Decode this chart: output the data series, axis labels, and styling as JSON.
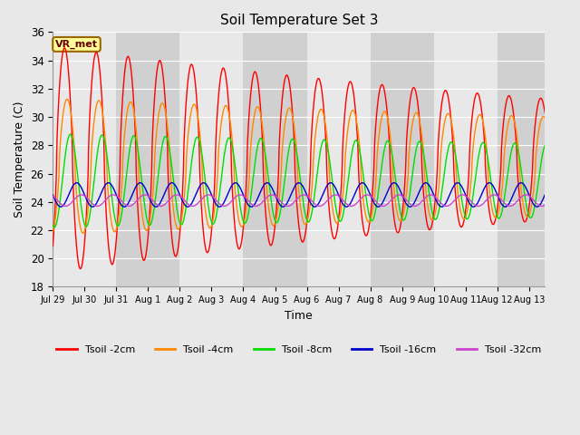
{
  "title": "Soil Temperature Set 3",
  "xlabel": "Time",
  "ylabel": "Soil Temperature (C)",
  "ylim": [
    18,
    36
  ],
  "yticks": [
    18,
    20,
    22,
    24,
    26,
    28,
    30,
    32,
    34,
    36
  ],
  "xtick_labels": [
    "Jul 29",
    "Jul 30",
    "Jul 31",
    "Aug 1",
    "Aug 2",
    "Aug 3",
    "Aug 4",
    "Aug 5",
    "Aug 6",
    "Aug 7",
    "Aug 8",
    "Aug 9",
    "Aug 10",
    "Aug 11",
    "Aug 12",
    "Aug 13"
  ],
  "n_days": 15.5,
  "colors": {
    "Tsoil -2cm": "#ff0000",
    "Tsoil -4cm": "#ff8800",
    "Tsoil -8cm": "#00dd00",
    "Tsoil -16cm": "#0000cc",
    "Tsoil -32cm": "#cc44cc"
  },
  "bg_light": "#e8e8e8",
  "bg_dark": "#d0d0d0",
  "grid_color": "#ffffff",
  "annotation_text": "VR_met",
  "annotation_bg": "#ffff99",
  "annotation_border": "#996600",
  "annotation_text_color": "#660000",
  "legend_labels": [
    "Tsoil -2cm",
    "Tsoil -4cm",
    "Tsoil -8cm",
    "Tsoil -16cm",
    "Tsoil -32cm"
  ],
  "series": {
    "Tsoil -2cm": {
      "mean": 27.0,
      "amp_base": 8.0,
      "amp_decay": 0.04,
      "phase": 0.12,
      "min_c": 18.5,
      "max_c": 36
    },
    "Tsoil -4cm": {
      "mean": 26.5,
      "amp_base": 4.8,
      "amp_decay": 0.02,
      "phase": 0.2,
      "min_c": 20.5,
      "max_c": 36
    },
    "Tsoil -8cm": {
      "mean": 25.5,
      "amp_base": 3.3,
      "amp_decay": 0.015,
      "phase": 0.3,
      "min_c": 22.0,
      "max_c": 30
    },
    "Tsoil -16cm": {
      "mean": 24.5,
      "amp_base": 0.85,
      "amp_decay": 0.0,
      "phase": 0.5,
      "min_c": 23.5,
      "max_c": 26
    },
    "Tsoil -32cm": {
      "mean": 24.1,
      "amp_base": 0.4,
      "amp_decay": 0.0,
      "phase": 0.65,
      "min_c": 23.7,
      "max_c": 24.8
    }
  },
  "figsize": [
    6.4,
    4.8
  ],
  "dpi": 100
}
